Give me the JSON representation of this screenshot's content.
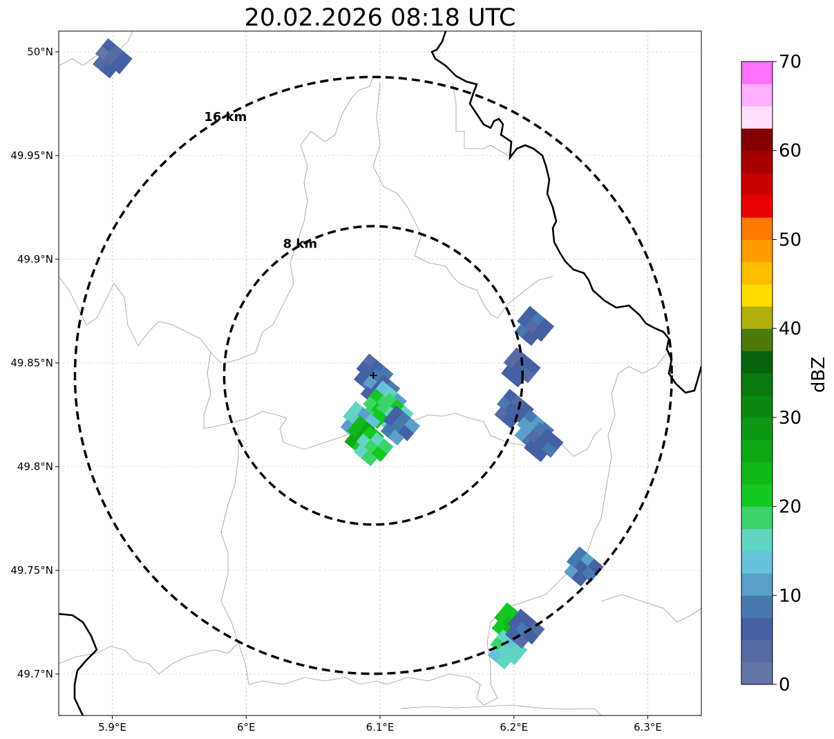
{
  "title": "20.02.2026 08:18 UTC",
  "map": {
    "lon_range": [
      5.86,
      6.34
    ],
    "lat_range": [
      49.68,
      50.01
    ],
    "lon_ticks": [
      {
        "value": 5.9,
        "label": "5.9°E"
      },
      {
        "value": 6.0,
        "label": "6°E"
      },
      {
        "value": 6.1,
        "label": "6.1°E"
      },
      {
        "value": 6.2,
        "label": "6.2°E"
      },
      {
        "value": 6.3,
        "label": "6.3°E"
      }
    ],
    "lat_ticks": [
      {
        "value": 50.0,
        "label": "50°N"
      },
      {
        "value": 49.95,
        "label": "49.95°N"
      },
      {
        "value": 49.9,
        "label": "49.9°N"
      },
      {
        "value": 49.85,
        "label": "49.85°N"
      },
      {
        "value": 49.8,
        "label": "49.8°N"
      },
      {
        "value": 49.75,
        "label": "49.75°N"
      },
      {
        "value": 49.7,
        "label": "49.7°N"
      }
    ],
    "grid": true,
    "radar_site": {
      "lon": 6.095,
      "lat": 49.844
    },
    "range_rings": [
      {
        "radius_km": 8,
        "label": "8 km"
      },
      {
        "radius_km": 16,
        "label": "16 km"
      }
    ],
    "echoes": [
      {
        "lon": 6.095,
        "lat": 49.845,
        "dbz": 6
      },
      {
        "lon": 6.1,
        "lat": 49.838,
        "dbz": 8
      },
      {
        "lon": 6.105,
        "lat": 49.832,
        "dbz": 14
      },
      {
        "lon": 6.1,
        "lat": 49.828,
        "dbz": 20
      },
      {
        "lon": 6.11,
        "lat": 49.826,
        "dbz": 18
      },
      {
        "lon": 6.115,
        "lat": 49.82,
        "dbz": 8
      },
      {
        "lon": 6.085,
        "lat": 49.822,
        "dbz": 14
      },
      {
        "lon": 6.088,
        "lat": 49.815,
        "dbz": 24
      },
      {
        "lon": 6.095,
        "lat": 49.81,
        "dbz": 18
      },
      {
        "lon": 6.215,
        "lat": 49.868,
        "dbz": 6
      },
      {
        "lon": 6.205,
        "lat": 49.848,
        "dbz": 5
      },
      {
        "lon": 6.2,
        "lat": 49.828,
        "dbz": 6
      },
      {
        "lon": 6.215,
        "lat": 49.818,
        "dbz": 10
      },
      {
        "lon": 6.222,
        "lat": 49.812,
        "dbz": 6
      },
      {
        "lon": 6.252,
        "lat": 49.752,
        "dbz": 8
      },
      {
        "lon": 6.198,
        "lat": 49.725,
        "dbz": 22
      },
      {
        "lon": 6.195,
        "lat": 49.712,
        "dbz": 16
      },
      {
        "lon": 6.208,
        "lat": 49.722,
        "dbz": 6
      },
      {
        "lon": 5.9,
        "lat": 49.997,
        "dbz": 4
      }
    ]
  },
  "colorbar": {
    "label": "dBZ",
    "min": 0,
    "max": 70,
    "step": 2.5,
    "tick_labels": [
      "0",
      "10",
      "20",
      "30",
      "40",
      "50",
      "60",
      "70"
    ],
    "colors": [
      "#6476a8",
      "#566aa4",
      "#4660a4",
      "#4878b0",
      "#58a0c8",
      "#66c2dc",
      "#60d6c2",
      "#3cd46a",
      "#14c820",
      "#10b818",
      "#0ea814",
      "#0c9812",
      "#0a8810",
      "#0a780e",
      "#08640c",
      "#4c7a08",
      "#b0b00a",
      "#ffdc00",
      "#ffbc00",
      "#ff9c00",
      "#ff7c00",
      "#e80000",
      "#c80000",
      "#a80000",
      "#820000",
      "#ffe0ff",
      "#ffb0ff",
      "#ff70ff",
      "#f030f0"
    ]
  }
}
